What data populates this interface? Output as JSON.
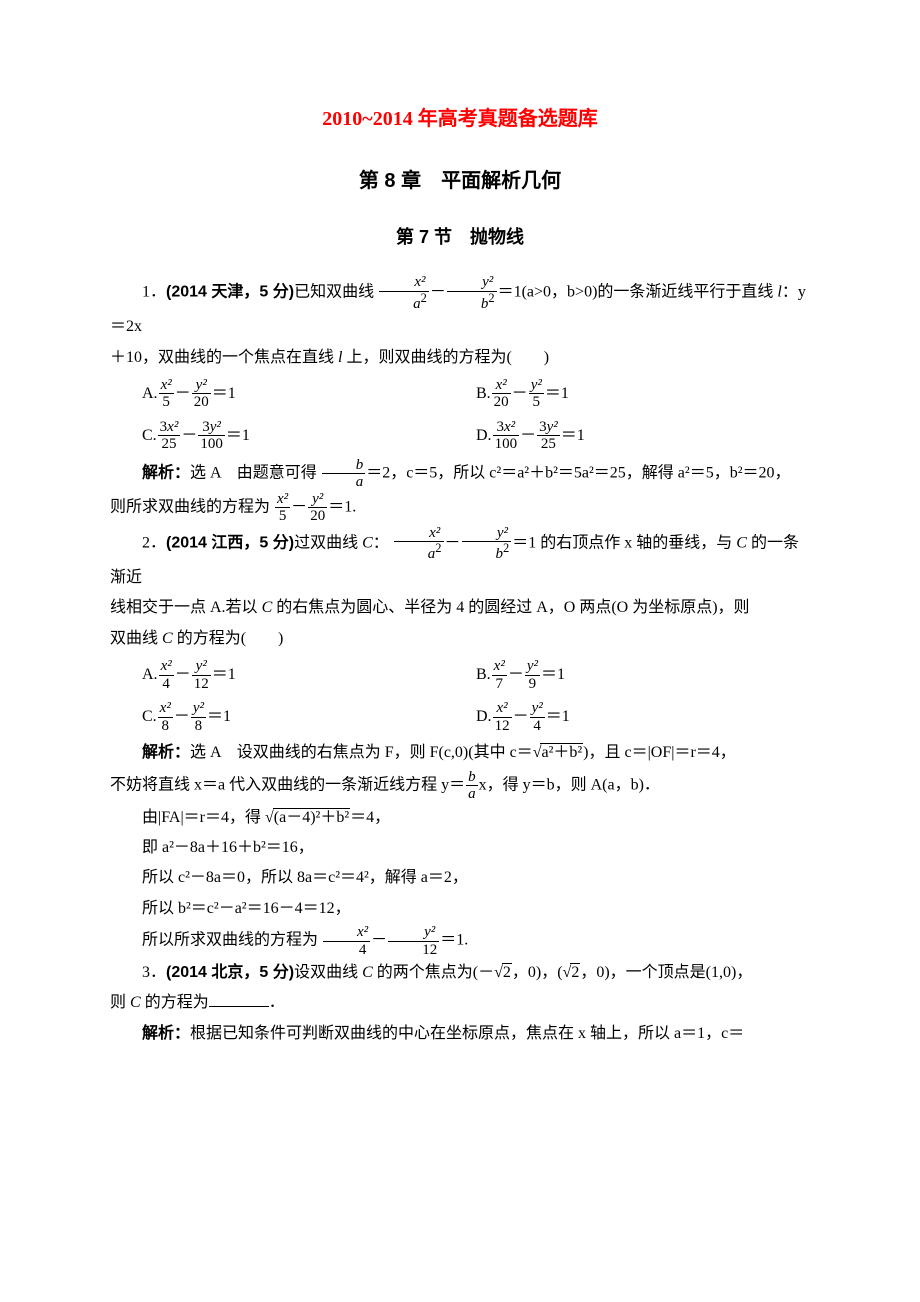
{
  "title": "2010~2014 年高考真题备选题库",
  "chapter": "第 8 章　平面解析几何",
  "section": "第 7 节　抛物线",
  "q1": {
    "num": "1．",
    "src": "(2014 天津，5 分)",
    "stem1": "已知双曲线 ",
    "eq_a2": "a",
    "eq_b2": "b",
    "stem2": "＝1(a>0，b>0)的一条渐近线平行于直线 ",
    "l": "l",
    "eq_line": "：y＝2x",
    "stem3": "＋10，双曲线的一个焦点在直线 ",
    "stem4": " 上，则双曲线的方程为(　　)",
    "opts": {
      "A": "A.",
      "A_d1": "5",
      "A_d2": "20",
      "B": "B.",
      "B_d1": "20",
      "B_d2": "5",
      "C": "C.",
      "C_n1": "3",
      "C_d1": "25",
      "C_n2": "3",
      "C_d2": "100",
      "D": "D.",
      "D_n1": "3",
      "D_d1": "100",
      "D_n2": "3",
      "D_d2": "25",
      "eq1": "＝1"
    },
    "sol": {
      "label": "解析：",
      "ans": "选 A　由题意可得",
      "fr_n": "b",
      "fr_d": "a",
      "t1": "＝2，c＝5，所以 c²＝a²＋b²＝5a²＝25，解得 a²＝5，b²＝20，",
      "t2": "则所求双曲线的方程为",
      "d1": "5",
      "d2": "20",
      "t3": "＝1."
    }
  },
  "q2": {
    "num": "2．",
    "src": "(2014 江西，5 分)",
    "stem1": "过双曲线 ",
    "C": "C",
    "colon": "：",
    "stem2": "＝1 的右顶点作 x 轴的垂线，与 ",
    "stem3": " 的一条渐近",
    "stem4": "线相交于一点 A.若以 ",
    "stem5": " 的右焦点为圆心、半径为 4 的圆经过 A，O 两点(O 为坐标原点)，则",
    "stem6": "双曲线 ",
    "stem7": " 的方程为(　　)",
    "opts": {
      "A": "A.",
      "A_d1": "4",
      "A_d2": "12",
      "B": "B.",
      "B_d1": "7",
      "B_d2": "9",
      "C": "C.",
      "C_d1": "8",
      "C_d2": "8",
      "D": "D.",
      "D_d1": "12",
      "D_d2": "4",
      "eq1": "＝1"
    },
    "sol": {
      "label": "解析：",
      "ans": "选 A　设双曲线的右焦点为 F，则 F(c,0)(其中 c＝",
      "rad": "a²＋b²",
      "t1": ")，且 c＝|OF|＝r＝4，",
      "t2": "不妨将直线 x＝a 代入双曲线的一条渐近线方程 y＝",
      "fr_n": "b",
      "fr_d": "a",
      "t3": "x，得 y＝b，则 A(a，b)．",
      "t4": "由|FA|＝r＝4，得 ",
      "rad2": "(a－4)²＋b²",
      "t5": "＝4，",
      "t6": "即 a²－8a＋16＋b²＝16，",
      "t7": "所以 c²－8a＝0，所以 8a＝c²＝4²，解得 a＝2，",
      "t8": "所以 b²＝c²－a²＝16－4＝12，",
      "t9": "所以所求双曲线的方程为",
      "d1": "4",
      "d2": "12",
      "t10": "＝1."
    }
  },
  "q3": {
    "num": "3．",
    "src": "(2014 北京，5 分)",
    "stem1": "设双曲线 ",
    "C": "C",
    "stem2": " 的两个焦点为(－",
    "rad": "2",
    "stem3": "，0)，(",
    "stem4": "，0)，一个顶点是(1,0)，",
    "stem5": "则 ",
    "stem6": " 的方程为",
    "stem7": "．",
    "sol": {
      "label": "解析：",
      "t1": "根据已知条件可判断双曲线的中心在坐标原点，焦点在 x 轴上，所以 a＝1，c＝"
    }
  },
  "sym": {
    "x2": "x²",
    "y2": "y²",
    "minus": "－",
    "sup2": "2"
  }
}
